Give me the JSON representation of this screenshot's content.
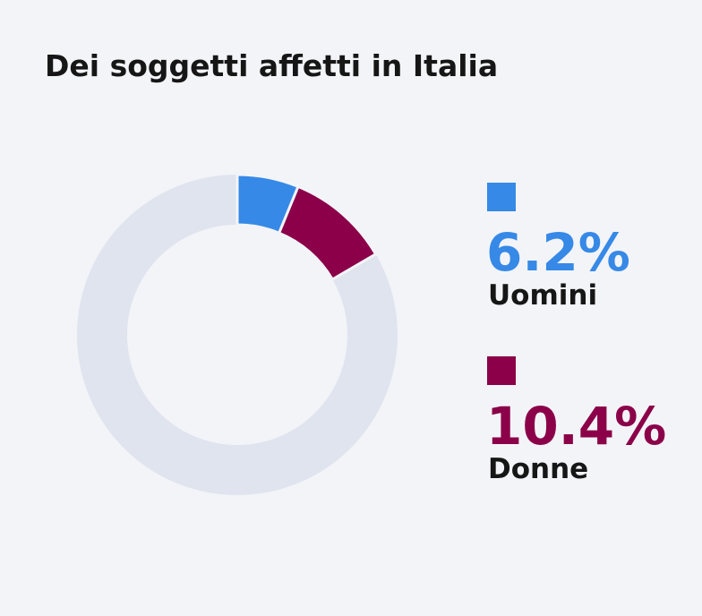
{
  "chart_data": {
    "type": "donut",
    "title": "Dei soggetti affetti in Italia",
    "categories": [
      "Uomini",
      "Donne"
    ],
    "values": [
      6.2,
      10.4
    ],
    "value_labels": [
      "6.2%",
      "10.4%"
    ],
    "colors": [
      "#3689e6",
      "#8b0049"
    ],
    "total": 100
  }
}
